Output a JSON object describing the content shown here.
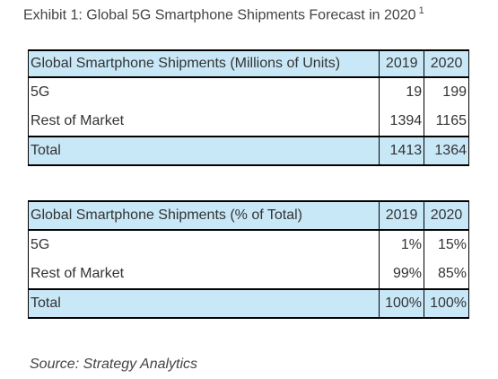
{
  "exhibit": {
    "title": "Exhibit 1: Global 5G Smartphone Shipments Forecast in 2020",
    "footnote_marker": "1"
  },
  "table_units": {
    "header": [
      "Global Smartphone Shipments (Millions of Units)",
      "2019",
      "2020"
    ],
    "rows": [
      [
        "5G",
        "19",
        "199"
      ],
      [
        "Rest of Market",
        "1394",
        "1165"
      ]
    ],
    "total": [
      "Total",
      "1413",
      "1364"
    ]
  },
  "table_percent": {
    "header": [
      "Global Smartphone Shipments (% of Total)",
      "2019",
      "2020"
    ],
    "rows": [
      [
        "5G",
        "1%",
        "15%"
      ],
      [
        "Rest of Market",
        "99%",
        "85%"
      ]
    ],
    "total": [
      "Total",
      "100%",
      "100%"
    ]
  },
  "source": "Source: Strategy Analytics"
}
